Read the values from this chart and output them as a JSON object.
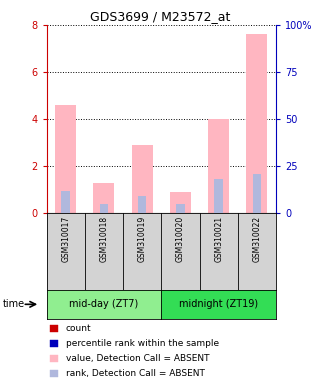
{
  "title": "GDS3699 / M23572_at",
  "samples": [
    "GSM310017",
    "GSM310018",
    "GSM310019",
    "GSM310020",
    "GSM310021",
    "GSM310022"
  ],
  "groups": [
    {
      "label": "mid-day (ZT7)",
      "color": "#90EE90",
      "indices": [
        0,
        1,
        2
      ]
    },
    {
      "label": "midnight (ZT19)",
      "color": "#33DD55",
      "indices": [
        3,
        4,
        5
      ]
    }
  ],
  "pink_bars": [
    4.6,
    1.3,
    2.9,
    0.9,
    4.0,
    7.6
  ],
  "blue_bars_pct": [
    12,
    5,
    9,
    5,
    18,
    21
  ],
  "ylim_left": [
    0,
    8
  ],
  "ylim_right": [
    0,
    100
  ],
  "yticks_left": [
    0,
    2,
    4,
    6,
    8
  ],
  "yticks_right": [
    0,
    25,
    50,
    75,
    100
  ],
  "ytick_labels_left": [
    "0",
    "2",
    "4",
    "6",
    "8"
  ],
  "ytick_labels_right": [
    "0",
    "25",
    "50",
    "75",
    "100%"
  ],
  "left_tick_color": "#CC0000",
  "right_tick_color": "#0000BB",
  "pink_color": "#FFB6C1",
  "blue_color": "#B0B8DD",
  "legend_items": [
    {
      "color": "#CC0000",
      "label": "count",
      "square": true
    },
    {
      "color": "#0000BB",
      "label": "percentile rank within the sample",
      "square": true
    },
    {
      "color": "#FFB6C1",
      "label": "value, Detection Call = ABSENT",
      "square": true
    },
    {
      "color": "#B0B8DD",
      "label": "rank, Detection Call = ABSENT",
      "square": true
    }
  ],
  "title_fontsize": 9,
  "label_fontsize": 6,
  "legend_fontsize": 6.5,
  "group_fontsize": 7
}
